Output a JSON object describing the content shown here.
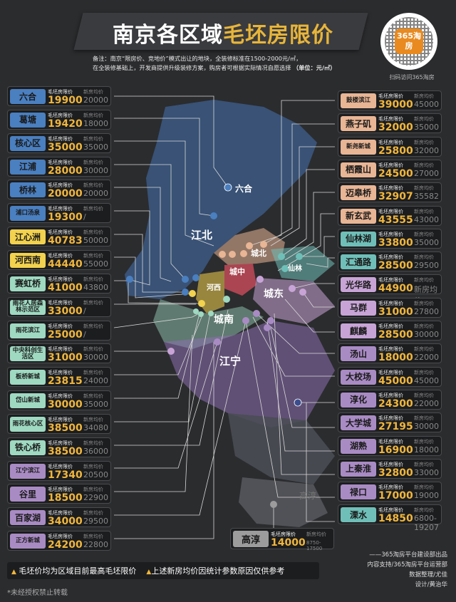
{
  "header": {
    "title_part1": "南京各区域",
    "title_part2": "毛坯房限价",
    "note_line1": "备注：南京“限房价、竞地价”模式出让的地块，全装修标准在1500-2000元/㎡，",
    "note_line2": "在全装修基础上，开发商提供升级装修方案，购房者可根据实际情况自愿选择",
    "unit": "（单位：元/㎡）",
    "logo_text": "365淘房",
    "logo_caption": "扫码访问365淘房"
  },
  "labels": {
    "price_label": "毛坯房限价",
    "avg_label": "新房均价"
  },
  "colors": {
    "jiangbei": "#4a7fc0",
    "hexi": "#f2d24e",
    "chengbei": "#e8b595",
    "xianlin": "#6fbfb8",
    "chengdong": "#c8a4d6",
    "chengnan": "#9fd9c2",
    "jiangning": "#a98bc4",
    "gaochun": "#9c9c9c",
    "accent": "#f0b63c"
  },
  "map_labels": {
    "jiangbei": "江北",
    "liuhe_dot": "六合",
    "chengbei": "城北",
    "chengzhong": "城中",
    "xianlin": "仙林",
    "chengdong": "城东",
    "hexi": "河西",
    "chengnan": "城南",
    "jiangning": "江宁",
    "gaochun_map": "高淳"
  },
  "left_cards": [
    {
      "name": "六合",
      "color": "#4a7fc0",
      "price": "19900",
      "avg": "20000"
    },
    {
      "name": "葛塘",
      "color": "#4a7fc0",
      "price": "19420",
      "avg": "18000"
    },
    {
      "name": "核心区",
      "color": "#4a7fc0",
      "price": "35000",
      "avg": "35000"
    },
    {
      "name": "江浦",
      "color": "#4a7fc0",
      "price": "28000",
      "avg": "30000"
    },
    {
      "name": "桥林",
      "color": "#4a7fc0",
      "price": "20000",
      "avg": "20000"
    },
    {
      "name": "浦口汤泉",
      "color": "#4a7fc0",
      "price": "19300",
      "avg": "/"
    },
    {
      "name": "江心洲",
      "color": "#f2d24e",
      "price": "40783",
      "avg": "50000"
    },
    {
      "name": "河西南",
      "color": "#f2d24e",
      "price": "44440",
      "avg": "55000"
    },
    {
      "name": "赛虹桥",
      "color": "#9fd9c2",
      "price": "41000",
      "avg": "43800"
    },
    {
      "name": "雨花人居森林示范区",
      "color": "#9fd9c2",
      "price": "33000",
      "avg": "/"
    },
    {
      "name": "雨花滨江",
      "color": "#9fd9c2",
      "price": "25000",
      "avg": "/"
    },
    {
      "name": "中央科创生活区",
      "color": "#9fd9c2",
      "price": "31000",
      "avg": "30000"
    },
    {
      "name": "板桥新城",
      "color": "#9fd9c2",
      "price": "23815",
      "avg": "24000"
    },
    {
      "name": "岱山新城",
      "color": "#9fd9c2",
      "price": "30000",
      "avg": "35000"
    },
    {
      "name": "雨花核心区",
      "color": "#9fd9c2",
      "price": "38500",
      "avg": "34080"
    },
    {
      "name": "铁心桥",
      "color": "#9fd9c2",
      "price": "38500",
      "avg": "36000"
    },
    {
      "name": "江宁滨江",
      "color": "#a98bc4",
      "price": "17340",
      "avg": "20500"
    },
    {
      "name": "谷里",
      "color": "#a98bc4",
      "price": "18500",
      "avg": "22900"
    },
    {
      "name": "百家湖",
      "color": "#a98bc4",
      "price": "34000",
      "avg": "29500"
    },
    {
      "name": "正方新城",
      "color": "#a98bc4",
      "price": "24200",
      "avg": "22800"
    }
  ],
  "right_cards": [
    {
      "name": "鼓楼滨江",
      "color": "#e8b595",
      "price": "39000",
      "avg": "45000"
    },
    {
      "name": "燕子矶",
      "color": "#e8b595",
      "price": "32000",
      "avg": "35000"
    },
    {
      "name": "新尧新城",
      "color": "#e8b595",
      "price": "25800",
      "avg": "32000"
    },
    {
      "name": "栖霞山",
      "color": "#e8b595",
      "price": "24500",
      "avg": "27000"
    },
    {
      "name": "迈皋桥",
      "color": "#e8b595",
      "price": "32907",
      "avg": "35582"
    },
    {
      "name": "新玄武",
      "color": "#e8b595",
      "price": "43555",
      "avg": "43000"
    },
    {
      "name": "仙林湖",
      "color": "#6fbfb8",
      "price": "33800",
      "avg": "35000"
    },
    {
      "name": "汇通路",
      "color": "#6fbfb8",
      "price": "28500",
      "avg": "29500"
    },
    {
      "name": "光华路",
      "color": "#c8a4d6",
      "price": "44900",
      "avg": "新房均价"
    },
    {
      "name": "马群",
      "color": "#c8a4d6",
      "price": "31000",
      "avg": "27800"
    },
    {
      "name": "麒麟",
      "color": "#c8a4d6",
      "price": "28500",
      "avg": "30000"
    },
    {
      "name": "汤山",
      "color": "#a98bc4",
      "price": "18000",
      "avg": "22000"
    },
    {
      "name": "大校场",
      "color": "#a98bc4",
      "price": "45000",
      "avg": "45000"
    },
    {
      "name": "淳化",
      "color": "#a98bc4",
      "price": "24300",
      "avg": "22000"
    },
    {
      "name": "大学城",
      "color": "#a98bc4",
      "price": "27195",
      "avg": "30000"
    },
    {
      "name": "湖熟",
      "color": "#a98bc4",
      "price": "16900",
      "avg": "18000"
    },
    {
      "name": "上秦淮",
      "color": "#a98bc4",
      "price": "32800",
      "avg": "33000"
    },
    {
      "name": "禄口",
      "color": "#a98bc4",
      "price": "17000",
      "avg": "19000"
    },
    {
      "name": "溧水",
      "color": "#6fbfb8",
      "price": "14850",
      "avg": "6800-19207"
    }
  ],
  "gaochun_card": {
    "name": "高淳",
    "price": "14000",
    "avg": "8750-17500"
  },
  "footer": {
    "note1": "毛坯价均为区域目前最高毛坯限价",
    "note2": "上述新房均价因统计参数原因仅供参考",
    "copyright": "*未经授权禁止转载",
    "credit1": "——365淘房平台建设部出品",
    "credit2": "内容支持/365淘房平台运营部",
    "credit3": "数据整理/尤佳",
    "credit4": "设计/黄治华"
  }
}
